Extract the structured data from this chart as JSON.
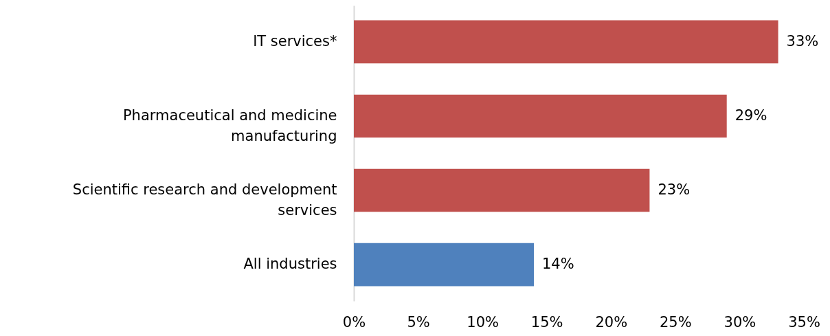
{
  "chart_data": {
    "type": "bar",
    "orientation": "horizontal",
    "categories": [
      "IT services*",
      "Pharmaceutical and medicine\nmanufacturing",
      "Scientific research and development\nservices",
      "All industries"
    ],
    "values": [
      33,
      29,
      23,
      14
    ],
    "colors": [
      "#c0504d",
      "#c0504d",
      "#c0504d",
      "#4f81bd"
    ],
    "value_labels": [
      "33%",
      "29%",
      "23%",
      "14%"
    ],
    "xlim": [
      0,
      35
    ],
    "xticks": [
      {
        "value": 0,
        "label": "0%"
      },
      {
        "value": 5,
        "label": "5%"
      },
      {
        "value": 10,
        "label": "10%"
      },
      {
        "value": 15,
        "label": "15%"
      },
      {
        "value": 20,
        "label": "20%"
      },
      {
        "value": 25,
        "label": "25%"
      },
      {
        "value": 30,
        "label": "30%"
      },
      {
        "value": 35,
        "label": "35%"
      }
    ],
    "grid": false
  }
}
